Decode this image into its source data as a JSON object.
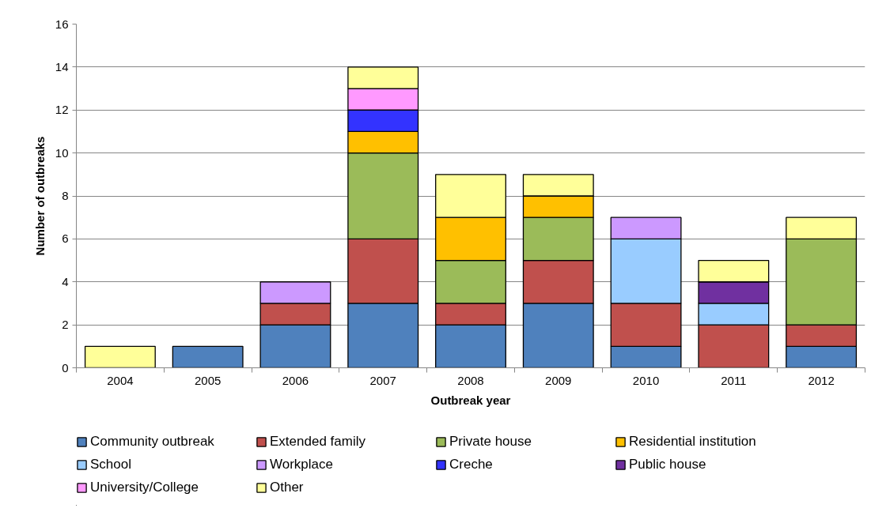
{
  "chart_data": {
    "type": "bar",
    "stacked": true,
    "xlabel": "Outbreak year",
    "ylabel": "Number of outbreaks",
    "categories": [
      "2004",
      "2005",
      "2006",
      "2007",
      "2008",
      "2009",
      "2010",
      "2011",
      "2012"
    ],
    "ylim": [
      0,
      16
    ],
    "yticks": [
      0,
      2,
      4,
      6,
      8,
      10,
      12,
      14,
      16
    ],
    "grid": "y",
    "legend": "bottom",
    "series": [
      {
        "name": "Community outbreak",
        "color": "#4f81bd",
        "values": [
          0,
          1,
          2,
          3,
          2,
          3,
          1,
          0,
          1
        ]
      },
      {
        "name": "Extended family",
        "color": "#c0504d",
        "values": [
          0,
          0,
          1,
          3,
          1,
          2,
          2,
          2,
          1
        ]
      },
      {
        "name": "Private house",
        "color": "#9bbb59",
        "values": [
          0,
          0,
          0,
          4,
          2,
          2,
          0,
          0,
          4
        ]
      },
      {
        "name": "Residential institution",
        "color": "#ffc000",
        "values": [
          0,
          0,
          0,
          1,
          2,
          1,
          0,
          0,
          0
        ]
      },
      {
        "name": "School",
        "color": "#99ccff",
        "values": [
          0,
          0,
          0,
          0,
          0,
          0,
          3,
          1,
          0
        ]
      },
      {
        "name": "Workplace",
        "color": "#cc99ff",
        "values": [
          0,
          0,
          1,
          0,
          0,
          0,
          1,
          0,
          0
        ]
      },
      {
        "name": "Creche",
        "color": "#3333ff",
        "values": [
          0,
          0,
          0,
          1,
          0,
          0,
          0,
          0,
          0
        ]
      },
      {
        "name": "Public house",
        "color": "#7030a0",
        "values": [
          0,
          0,
          0,
          0,
          0,
          0,
          0,
          1,
          0
        ]
      },
      {
        "name": "University/College",
        "color": "#ff99ff",
        "values": [
          0,
          0,
          0,
          1,
          0,
          0,
          0,
          0,
          0
        ]
      },
      {
        "name": "Other",
        "color": "#ffff99",
        "values": [
          1,
          0,
          0,
          1,
          2,
          1,
          0,
          1,
          1
        ]
      }
    ]
  }
}
